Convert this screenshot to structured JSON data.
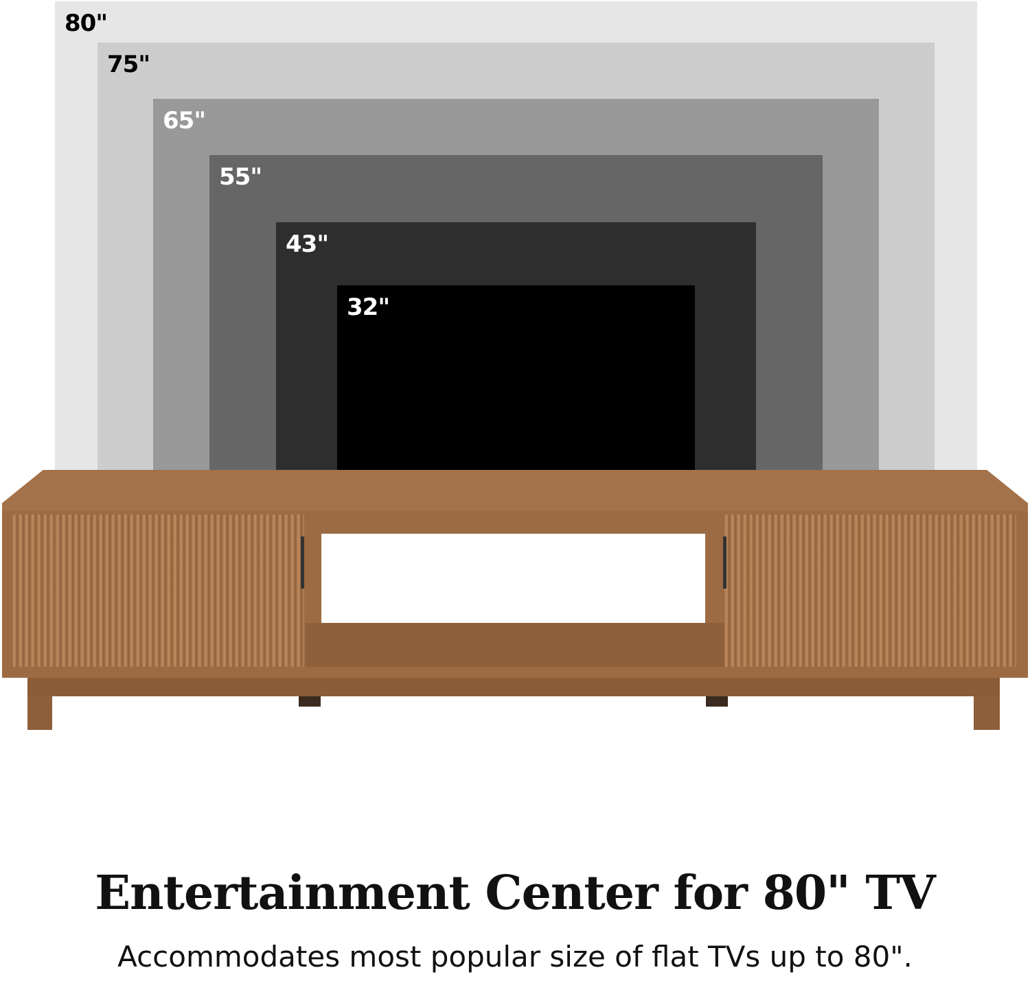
{
  "tv_sizes": [
    {
      "label": "80\"",
      "color": "#e6e6e6",
      "text_color": "#000000"
    },
    {
      "label": "75\"",
      "color": "#cdcdcd",
      "text_color": "#000000"
    },
    {
      "label": "65\"",
      "color": "#999999",
      "text_color": "#ffffff"
    },
    {
      "label": "55\"",
      "color": "#666666",
      "text_color": "#ffffff"
    },
    {
      "label": "43\"",
      "color": "#2e2e2e",
      "text_color": "#ffffff"
    },
    {
      "label": "32\"",
      "color": "#000000",
      "text_color": "#ffffff"
    }
  ],
  "wood_color": "#9c6b43",
  "title": "Entertainment Center for 80\" TV",
  "subtitle": "Accommodates most popular size of flat TVs up to 80\"."
}
